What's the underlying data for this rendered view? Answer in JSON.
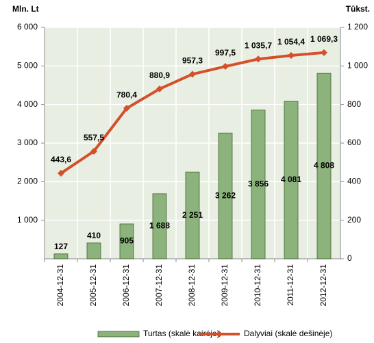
{
  "chart_data": {
    "type": "bar",
    "y_label": "Mln. Lt",
    "y2_label": "Tūkst.",
    "categories": [
      "2004-12-31",
      "2005-12-31",
      "2006-12-31",
      "2007-12-31",
      "2008-12-31",
      "2009-12-31",
      "2010-12-31",
      "2011-12-31",
      "2012-12-31"
    ],
    "series": [
      {
        "name": "Turtas (skalė kairėje)",
        "type": "bar",
        "color": "#8db37c",
        "values": [
          127,
          410,
          905,
          1688,
          2251,
          3262,
          3856,
          4081,
          4808
        ],
        "value_labels": [
          "127",
          "410",
          "905",
          "1 688",
          "2 251",
          "3 262",
          "3 856",
          "4 081",
          "4 808"
        ]
      },
      {
        "name": "Dalyviai (skalė dešinėje)",
        "type": "line",
        "axis": "y2",
        "color": "#d4502a",
        "values": [
          443.6,
          557.5,
          780.4,
          880.9,
          957.3,
          997.5,
          1035.7,
          1054.4,
          1069.3
        ],
        "value_labels": [
          "443,6",
          "557,5",
          "780,4",
          "880,9",
          "957,3",
          "997,5",
          "1 035,7",
          "1 054,4",
          "1 069,3"
        ]
      }
    ],
    "ylim": [
      0,
      6000
    ],
    "yticks": [
      {
        "value": 1000,
        "label": "1 000"
      },
      {
        "value": 2000,
        "label": "2 000"
      },
      {
        "value": 3000,
        "label": "3 000"
      },
      {
        "value": 4000,
        "label": "4 000"
      },
      {
        "value": 5000,
        "label": "5 000"
      },
      {
        "value": 6000,
        "label": "6 000"
      }
    ],
    "y2lim": [
      0,
      1200
    ],
    "y2ticks": [
      0,
      200,
      400,
      600,
      800,
      {
        "value": 1000,
        "label": "1 000"
      },
      {
        "value": 1200,
        "label": "1 200"
      }
    ],
    "grid": true
  }
}
